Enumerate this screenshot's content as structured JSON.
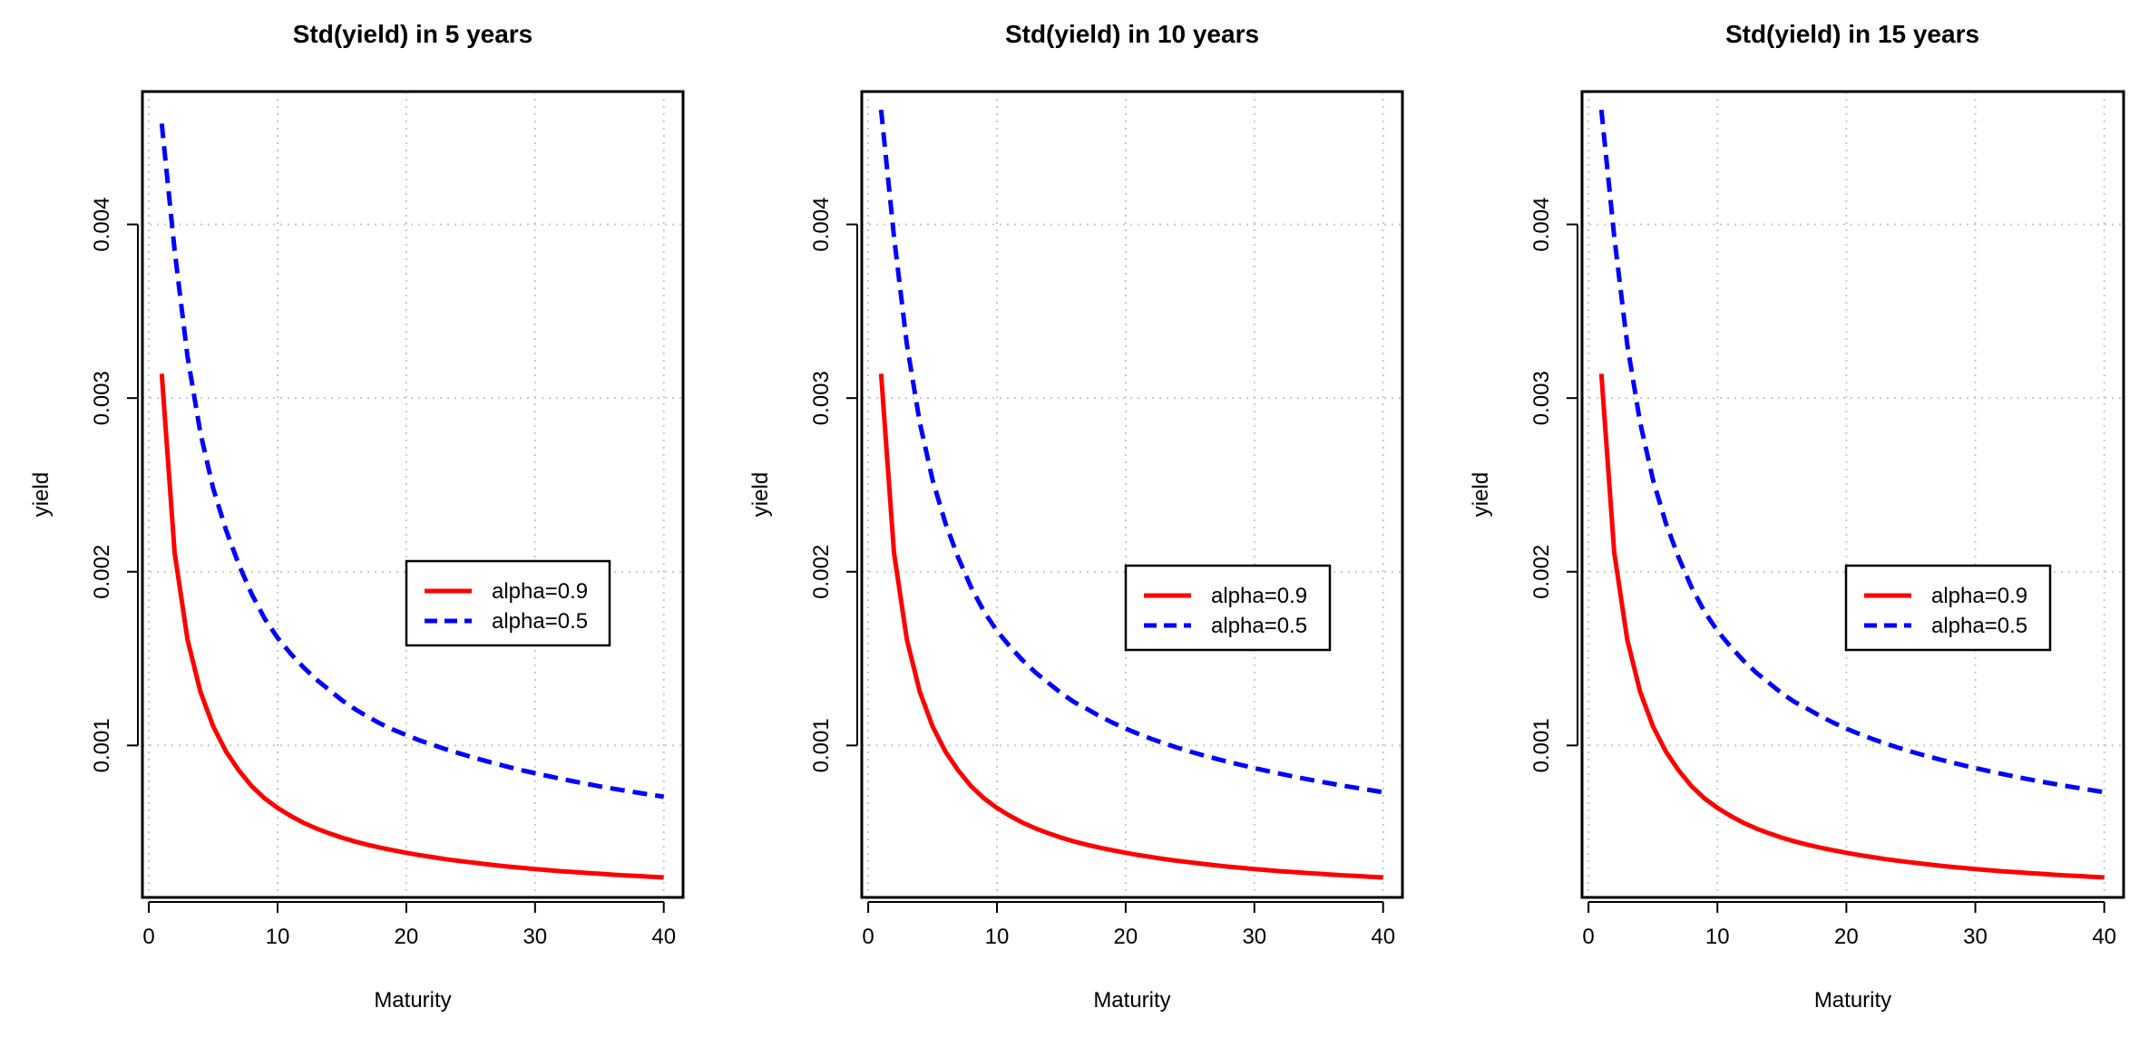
{
  "figure": {
    "description": "Three side-by-side line charts of yield standard deviation versus maturity"
  },
  "chart_data": [
    {
      "type": "line",
      "title": "Std(yield) in 5 years",
      "xlabel": "Maturity",
      "ylabel": "yield",
      "xlim": [
        -0.5,
        41.5
      ],
      "ylim": [
        0.000125,
        0.004765
      ],
      "xticks": [
        0,
        10,
        20,
        30,
        40
      ],
      "xtick_labels": [
        "0",
        "10",
        "20",
        "30",
        "40"
      ],
      "yticks": [
        0.001,
        0.002,
        0.003,
        0.004
      ],
      "ytick_labels": [
        "0.001",
        "0.002",
        "0.003",
        "0.004"
      ],
      "grid": true,
      "legend_position": "center-right",
      "series": [
        {
          "name": "alpha=0.9",
          "color": "#ff0000",
          "style": "solid",
          "x": [
            1,
            2,
            3,
            4,
            5,
            6,
            7,
            8,
            9,
            10,
            11,
            12,
            13,
            14,
            15,
            16,
            17,
            18,
            19,
            20,
            21,
            22,
            23,
            24,
            25,
            26,
            27,
            28,
            29,
            30,
            31,
            32,
            33,
            34,
            35,
            36,
            37,
            38,
            39,
            40
          ],
          "values": [
            0.00314,
            0.00211,
            0.00161,
            0.00131,
            0.00111,
            0.000965,
            0.000855,
            0.000765,
            0.000695,
            0.00064,
            0.000595,
            0.000555,
            0.000522,
            0.000494,
            0.000469,
            0.000447,
            0.000428,
            0.000411,
            0.000396,
            0.000382,
            0.000369,
            0.000357,
            0.000346,
            0.000336,
            0.000327,
            0.000318,
            0.00031,
            0.000302,
            0.000295,
            0.000288,
            0.000282,
            0.000276,
            0.000271,
            0.000266,
            0.000261,
            0.000256,
            0.000252,
            0.000248,
            0.000244,
            0.00024
          ]
        },
        {
          "name": "alpha=0.5",
          "color": "#0000ff",
          "style": "dashed",
          "x": [
            1,
            2,
            3,
            4,
            5,
            6,
            7,
            8,
            9,
            10,
            11,
            12,
            13,
            14,
            15,
            16,
            17,
            18,
            19,
            20,
            21,
            22,
            23,
            24,
            25,
            26,
            27,
            28,
            29,
            30,
            31,
            32,
            33,
            34,
            35,
            36,
            37,
            38,
            39,
            40
          ],
          "values": [
            0.00458,
            0.00385,
            0.00324,
            0.0028,
            0.00248,
            0.00224,
            0.00204,
            0.00187,
            0.00173,
            0.00162,
            0.00153,
            0.00145,
            0.00138,
            0.00132,
            0.00126,
            0.00121,
            0.001165,
            0.001125,
            0.00109,
            0.00106,
            0.00103,
            0.001005,
            0.00098,
            0.000957,
            0.000935,
            0.000914,
            0.000894,
            0.000875,
            0.000857,
            0.00084,
            0.000824,
            0.000808,
            0.000793,
            0.000779,
            0.000765,
            0.000752,
            0.00074,
            0.000728,
            0.000716,
            0.000705
          ]
        }
      ]
    },
    {
      "type": "line",
      "title": "Std(yield) in 10 years",
      "xlabel": "Maturity",
      "ylabel": "yield",
      "xlim": [
        -0.5,
        41.5
      ],
      "ylim": [
        0.000125,
        0.004765
      ],
      "xticks": [
        0,
        10,
        20,
        30,
        40
      ],
      "xtick_labels": [
        "0",
        "10",
        "20",
        "30",
        "40"
      ],
      "yticks": [
        0.001,
        0.002,
        0.003,
        0.004
      ],
      "ytick_labels": [
        "0.001",
        "0.002",
        "0.003",
        "0.004"
      ],
      "grid": true,
      "legend_position": "center-right",
      "series": [
        {
          "name": "alpha=0.9",
          "color": "#ff0000",
          "style": "solid",
          "x": [
            1,
            2,
            3,
            4,
            5,
            6,
            7,
            8,
            9,
            10,
            11,
            12,
            13,
            14,
            15,
            16,
            17,
            18,
            19,
            20,
            21,
            22,
            23,
            24,
            25,
            26,
            27,
            28,
            29,
            30,
            31,
            32,
            33,
            34,
            35,
            36,
            37,
            38,
            39,
            40
          ],
          "values": [
            0.00314,
            0.00211,
            0.00161,
            0.00131,
            0.00111,
            0.000965,
            0.000855,
            0.000765,
            0.000695,
            0.00064,
            0.000595,
            0.000555,
            0.000522,
            0.000494,
            0.000469,
            0.000447,
            0.000428,
            0.000411,
            0.000396,
            0.000382,
            0.000369,
            0.000357,
            0.000346,
            0.000336,
            0.000327,
            0.000318,
            0.00031,
            0.000302,
            0.000295,
            0.000288,
            0.000282,
            0.000276,
            0.000271,
            0.000266,
            0.000261,
            0.000256,
            0.000252,
            0.000248,
            0.000244,
            0.00024
          ]
        },
        {
          "name": "alpha=0.5",
          "color": "#0000ff",
          "style": "dashed",
          "x": [
            1,
            2,
            3,
            4,
            5,
            6,
            7,
            8,
            9,
            10,
            11,
            12,
            13,
            14,
            15,
            16,
            17,
            18,
            19,
            20,
            21,
            22,
            23,
            24,
            25,
            26,
            27,
            28,
            29,
            30,
            31,
            32,
            33,
            34,
            35,
            36,
            37,
            38,
            39,
            40
          ],
          "values": [
            0.00466,
            0.00393,
            0.00331,
            0.00286,
            0.00253,
            0.00228,
            0.00208,
            0.00191,
            0.00177,
            0.00166,
            0.00157,
            0.00149,
            0.00142,
            0.00136,
            0.0013,
            0.00125,
            0.00121,
            0.001168,
            0.001131,
            0.001097,
            0.001066,
            0.001038,
            0.001012,
            0.000988,
            0.000965,
            0.000944,
            0.000924,
            0.000905,
            0.000887,
            0.00087,
            0.000853,
            0.000837,
            0.000822,
            0.000807,
            0.000793,
            0.00078,
            0.000767,
            0.000755,
            0.000743,
            0.000731
          ]
        }
      ]
    },
    {
      "type": "line",
      "title": "Std(yield) in 15 years",
      "xlabel": "Maturity",
      "ylabel": "yield",
      "xlim": [
        -0.5,
        41.5
      ],
      "ylim": [
        0.000125,
        0.004765
      ],
      "xticks": [
        0,
        10,
        20,
        30,
        40
      ],
      "xtick_labels": [
        "0",
        "10",
        "20",
        "30",
        "40"
      ],
      "yticks": [
        0.001,
        0.002,
        0.003,
        0.004
      ],
      "ytick_labels": [
        "0.001",
        "0.002",
        "0.003",
        "0.004"
      ],
      "grid": true,
      "legend_position": "center-right",
      "series": [
        {
          "name": "alpha=0.9",
          "color": "#ff0000",
          "style": "solid",
          "x": [
            1,
            2,
            3,
            4,
            5,
            6,
            7,
            8,
            9,
            10,
            11,
            12,
            13,
            14,
            15,
            16,
            17,
            18,
            19,
            20,
            21,
            22,
            23,
            24,
            25,
            26,
            27,
            28,
            29,
            30,
            31,
            32,
            33,
            34,
            35,
            36,
            37,
            38,
            39,
            40
          ],
          "values": [
            0.00314,
            0.00211,
            0.00161,
            0.00131,
            0.00111,
            0.000965,
            0.000855,
            0.000765,
            0.000695,
            0.00064,
            0.000595,
            0.000555,
            0.000522,
            0.000494,
            0.000469,
            0.000447,
            0.000428,
            0.000411,
            0.000396,
            0.000382,
            0.000369,
            0.000357,
            0.000346,
            0.000336,
            0.000327,
            0.000318,
            0.00031,
            0.000302,
            0.000295,
            0.000288,
            0.000282,
            0.000276,
            0.000271,
            0.000266,
            0.000261,
            0.000256,
            0.000252,
            0.000248,
            0.000244,
            0.00024
          ]
        },
        {
          "name": "alpha=0.5",
          "color": "#0000ff",
          "style": "dashed",
          "x": [
            1,
            2,
            3,
            4,
            5,
            6,
            7,
            8,
            9,
            10,
            11,
            12,
            13,
            14,
            15,
            16,
            17,
            18,
            19,
            20,
            21,
            22,
            23,
            24,
            25,
            26,
            27,
            28,
            29,
            30,
            31,
            32,
            33,
            34,
            35,
            36,
            37,
            38,
            39,
            40
          ],
          "values": [
            0.00466,
            0.00393,
            0.00331,
            0.00286,
            0.00253,
            0.00228,
            0.00208,
            0.00191,
            0.00177,
            0.00166,
            0.00157,
            0.00149,
            0.00142,
            0.00136,
            0.0013,
            0.00125,
            0.00121,
            0.001168,
            0.001131,
            0.001097,
            0.001066,
            0.001038,
            0.001012,
            0.000988,
            0.000965,
            0.000944,
            0.000924,
            0.000905,
            0.000887,
            0.00087,
            0.000853,
            0.000837,
            0.000822,
            0.000807,
            0.000793,
            0.00078,
            0.000767,
            0.000755,
            0.000743,
            0.000731
          ]
        }
      ]
    }
  ]
}
